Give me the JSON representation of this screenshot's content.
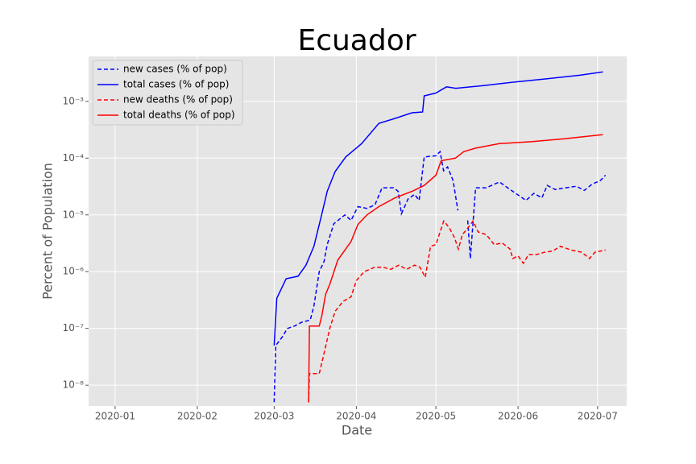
{
  "chart_data": {
    "type": "line",
    "title": "Ecuador",
    "x_label": "Date",
    "y_label": "Percent of Population",
    "log_y": true,
    "grid": true,
    "legend": "upper left",
    "xlim": [
      -10,
      193
    ],
    "xticks": [
      {
        "value": 0,
        "label": "2020-01"
      },
      {
        "value": 31,
        "label": "2020-02"
      },
      {
        "value": 60,
        "label": "2020-03"
      },
      {
        "value": 91,
        "label": "2020-04"
      },
      {
        "value": 121,
        "label": "2020-05"
      },
      {
        "value": 152,
        "label": "2020-06"
      },
      {
        "value": 182,
        "label": "2020-07"
      }
    ],
    "ylim": [
      4.3e-09,
      0.0062
    ],
    "yticks": [
      {
        "value": 1e-08,
        "label": "10⁻⁸"
      },
      {
        "value": 1e-07,
        "label": "10⁻⁷"
      },
      {
        "value": 1e-06,
        "label": "10⁻⁶"
      },
      {
        "value": 1e-05,
        "label": "10⁻⁵"
      },
      {
        "value": 0.0001,
        "label": "10⁻⁴"
      },
      {
        "value": 0.001,
        "label": "10⁻³"
      }
    ],
    "series": [
      {
        "name": "new cases (% of pop)",
        "color": "#0000ff",
        "linestyle": "dashed",
        "x": [
          60,
          60.6,
          63,
          65,
          67.6,
          70.6,
          73.6,
          75,
          77,
          78.8,
          80,
          82.5,
          86.7,
          89,
          91.6,
          95,
          98,
          100.7,
          105,
          106.8,
          108,
          110.5,
          113,
          114.7,
          116.6,
          121,
          122.6,
          123.9,
          125.4,
          127.5,
          129.3,
          130.6,
          133,
          134,
          136,
          140,
          145,
          150,
          155,
          158,
          161,
          163,
          166,
          170,
          174,
          177,
          180,
          183,
          185
        ],
        "values": [
          5e-09,
          5e-08,
          7e-08,
          1e-07,
          1.1e-07,
          1.3e-07,
          1.4e-07,
          2.5e-07,
          1e-06,
          1.5e-06,
          3e-06,
          7e-06,
          1e-05,
          8e-06,
          1.4e-05,
          1.3e-05,
          1.5e-05,
          3e-05,
          3e-05,
          2.6e-05,
          1.05e-05,
          1.9e-05,
          2.3e-05,
          1.8e-05,
          0.000105,
          0.00011,
          0.00013,
          6e-05,
          7e-05,
          4e-05,
          1.2e-05,
          null,
          8e-06,
          1.7e-06,
          3e-05,
          3e-05,
          3.8e-05,
          2.6e-05,
          1.8e-05,
          2.4e-05,
          2e-05,
          3.3e-05,
          2.8e-05,
          3e-05,
          3.2e-05,
          2.7e-05,
          3.5e-05,
          4e-05,
          5e-05
        ]
      },
      {
        "name": "total cases (% of pop)",
        "color": "#0000ff",
        "linestyle": "solid",
        "x": [
          60,
          61,
          64.5,
          69,
          72,
          75,
          78,
          80,
          83,
          87,
          93,
          99.5,
          105.6,
          112,
          116,
          116.6,
          121,
          125,
          128.5,
          139,
          151,
          163,
          175.6,
          184
        ],
        "values": [
          5e-08,
          3.4e-07,
          7.5e-07,
          8.3e-07,
          1.3e-06,
          2.8e-06,
          1.05e-05,
          2.6e-05,
          5.8e-05,
          0.000105,
          0.00018,
          0.00041,
          0.0005,
          0.00063,
          0.00065,
          0.00125,
          0.0014,
          0.0018,
          0.0017,
          0.0019,
          0.0022,
          0.0025,
          0.0029,
          0.0033
        ]
      },
      {
        "name": "new deaths (% of pop)",
        "color": "#ff0000",
        "linestyle": "dashed",
        "x": [
          73,
          73.3,
          77,
          78,
          79.5,
          81,
          83,
          86,
          89,
          91,
          94,
          98,
          101,
          104,
          107,
          110,
          113,
          115,
          117,
          119,
          121,
          124,
          126,
          128,
          129.5,
          131,
          133,
          135,
          137,
          140,
          143,
          146,
          149,
          150,
          152,
          154,
          156,
          159,
          162,
          165,
          168,
          172,
          176,
          179,
          181,
          185
        ],
        "values": [
          5e-09,
          1.6e-08,
          1.6e-08,
          2.5e-08,
          5e-08,
          1e-07,
          2e-07,
          3e-07,
          3.6e-07,
          7e-07,
          1e-06,
          1.2e-06,
          1.2e-06,
          1.1e-06,
          1.3e-06,
          1.1e-06,
          1.3e-06,
          1.2e-06,
          8e-07,
          2.8e-06,
          3e-06,
          7.8e-06,
          6e-06,
          4e-06,
          2.5e-06,
          4.5e-06,
          5.8e-06,
          7.8e-06,
          5e-06,
          4.5e-06,
          3e-06,
          3.2e-06,
          2.5e-06,
          1.7e-06,
          1.9e-06,
          1.4e-06,
          2e-06,
          2e-06,
          2.2e-06,
          2.3e-06,
          2.8e-06,
          2.4e-06,
          2.2e-06,
          1.7e-06,
          2.2e-06,
          2.4e-06
        ]
      },
      {
        "name": "total deaths (% of pop)",
        "color": "#ff0000",
        "linestyle": "solid",
        "x": [
          73,
          73.3,
          77,
          78,
          79.4,
          81,
          84,
          89,
          91.6,
          95,
          99.5,
          105.6,
          112,
          116.6,
          121,
          123,
          128.4,
          131.5,
          136,
          145,
          157,
          169.5,
          184
        ],
        "values": [
          5e-09,
          1.1e-07,
          1.1e-07,
          1.7e-07,
          4e-07,
          6e-07,
          1.6e-06,
          3.4e-06,
          6.8e-06,
          1e-05,
          1.4e-05,
          2e-05,
          2.6e-05,
          3.3e-05,
          5e-05,
          9e-05,
          0.0001,
          0.00013,
          0.00015,
          0.00018,
          0.000195,
          0.00022,
          0.00026
        ]
      }
    ]
  }
}
